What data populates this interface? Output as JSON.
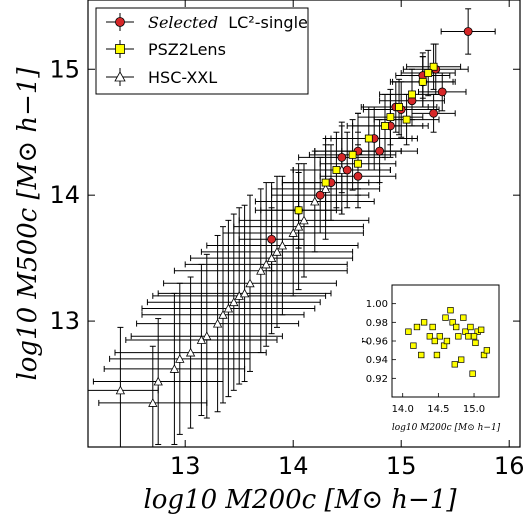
{
  "chart_data": [
    {
      "type": "scatter",
      "xlabel": "log10 M200c [M⊙ h−1]",
      "ylabel": "log10 M500c [M⊙ h−1]",
      "xlim": [
        12.1,
        16.1
      ],
      "ylim": [
        12.0,
        15.55
      ],
      "x_ticks": [
        13,
        14,
        15,
        16
      ],
      "x_tick_labels": [
        "13",
        "14",
        "15",
        "16"
      ],
      "y_ticks": [
        13,
        14,
        15
      ],
      "y_tick_labels": [
        "13",
        "14",
        "15"
      ],
      "grid": false,
      "legend_position": "top-left",
      "series": [
        {
          "name": "Selected LC²-single",
          "marker": "circle",
          "color": "#d62728",
          "points": [
            {
              "x": 15.62,
              "y": 15.3,
              "xerr": 0.25,
              "yerr": 0.18
            },
            {
              "x": 15.32,
              "y": 15.0,
              "xerr": 0.3,
              "yerr": 0.2
            },
            {
              "x": 15.38,
              "y": 14.82,
              "xerr": 0.22,
              "yerr": 0.15
            },
            {
              "x": 15.2,
              "y": 14.9,
              "xerr": 0.28,
              "yerr": 0.2
            },
            {
              "x": 15.1,
              "y": 14.75,
              "xerr": 0.3,
              "yerr": 0.2
            },
            {
              "x": 15.0,
              "y": 14.68,
              "xerr": 0.35,
              "yerr": 0.22
            },
            {
              "x": 15.3,
              "y": 14.65,
              "xerr": 0.2,
              "yerr": 0.15
            },
            {
              "x": 14.9,
              "y": 14.55,
              "xerr": 0.35,
              "yerr": 0.25
            },
            {
              "x": 14.75,
              "y": 14.45,
              "xerr": 0.4,
              "yerr": 0.25
            },
            {
              "x": 14.6,
              "y": 14.35,
              "xerr": 0.4,
              "yerr": 0.3
            },
            {
              "x": 14.5,
              "y": 14.2,
              "xerr": 0.4,
              "yerr": 0.3
            },
            {
              "x": 14.35,
              "y": 14.1,
              "xerr": 0.45,
              "yerr": 0.3
            },
            {
              "x": 14.25,
              "y": 14.0,
              "xerr": 0.45,
              "yerr": 0.3
            },
            {
              "x": 14.05,
              "y": 13.88,
              "xerr": 0.4,
              "yerr": 0.3
            },
            {
              "x": 13.8,
              "y": 13.65,
              "xerr": 0.3,
              "yerr": 0.25
            },
            {
              "x": 14.6,
              "y": 14.15,
              "xerr": 0.35,
              "yerr": 0.25
            },
            {
              "x": 14.95,
              "y": 14.7,
              "xerr": 0.3,
              "yerr": 0.2
            },
            {
              "x": 15.2,
              "y": 14.95,
              "xerr": 0.25,
              "yerr": 0.18
            },
            {
              "x": 14.45,
              "y": 14.3,
              "xerr": 0.4,
              "yerr": 0.28
            },
            {
              "x": 14.8,
              "y": 14.35,
              "xerr": 0.35,
              "yerr": 0.25
            }
          ]
        },
        {
          "name": "PSZ2Lens",
          "marker": "square",
          "color": "#ffff00",
          "points": [
            {
              "x": 15.3,
              "y": 15.02,
              "xerr": 0.25,
              "yerr": 0.18
            },
            {
              "x": 15.2,
              "y": 14.9,
              "xerr": 0.3,
              "yerr": 0.2
            },
            {
              "x": 15.1,
              "y": 14.8,
              "xerr": 0.3,
              "yerr": 0.2
            },
            {
              "x": 14.98,
              "y": 14.7,
              "xerr": 0.35,
              "yerr": 0.22
            },
            {
              "x": 14.85,
              "y": 14.55,
              "xerr": 0.35,
              "yerr": 0.25
            },
            {
              "x": 14.7,
              "y": 14.45,
              "xerr": 0.4,
              "yerr": 0.25
            },
            {
              "x": 14.55,
              "y": 14.32,
              "xerr": 0.4,
              "yerr": 0.28
            },
            {
              "x": 14.4,
              "y": 14.2,
              "xerr": 0.4,
              "yerr": 0.3
            },
            {
              "x": 14.3,
              "y": 14.1,
              "xerr": 0.4,
              "yerr": 0.3
            },
            {
              "x": 14.05,
              "y": 13.88,
              "xerr": 0.35,
              "yerr": 0.3
            },
            {
              "x": 15.05,
              "y": 14.6,
              "xerr": 0.3,
              "yerr": 0.2
            },
            {
              "x": 14.9,
              "y": 14.62,
              "xerr": 0.3,
              "yerr": 0.22
            },
            {
              "x": 15.25,
              "y": 14.97,
              "xerr": 0.25,
              "yerr": 0.18
            },
            {
              "x": 14.6,
              "y": 14.25,
              "xerr": 0.35,
              "yerr": 0.25
            }
          ]
        },
        {
          "name": "HSC-XXL",
          "marker": "triangle",
          "color": "#ffffff",
          "points": [
            {
              "x": 12.4,
              "y": 12.45,
              "xerr": 0.35,
              "yerr": 0.5
            },
            {
              "x": 12.7,
              "y": 12.35,
              "xerr": 0.5,
              "yerr": 0.45
            },
            {
              "x": 12.75,
              "y": 12.52,
              "xerr": 0.6,
              "yerr": 0.5
            },
            {
              "x": 12.9,
              "y": 12.62,
              "xerr": 0.65,
              "yerr": 0.6
            },
            {
              "x": 13.05,
              "y": 12.75,
              "xerr": 0.7,
              "yerr": 0.6
            },
            {
              "x": 13.2,
              "y": 12.88,
              "xerr": 0.7,
              "yerr": 0.65
            },
            {
              "x": 13.3,
              "y": 12.98,
              "xerr": 0.75,
              "yerr": 0.7
            },
            {
              "x": 13.4,
              "y": 13.1,
              "xerr": 0.8,
              "yerr": 0.7
            },
            {
              "x": 13.5,
              "y": 13.2,
              "xerr": 0.8,
              "yerr": 0.7
            },
            {
              "x": 13.6,
              "y": 13.3,
              "xerr": 0.8,
              "yerr": 0.7
            },
            {
              "x": 13.7,
              "y": 13.4,
              "xerr": 0.8,
              "yerr": 0.65
            },
            {
              "x": 13.8,
              "y": 13.5,
              "xerr": 0.75,
              "yerr": 0.6
            },
            {
              "x": 13.9,
              "y": 13.6,
              "xerr": 0.7,
              "yerr": 0.55
            },
            {
              "x": 14.0,
              "y": 13.7,
              "xerr": 0.65,
              "yerr": 0.5
            },
            {
              "x": 14.1,
              "y": 13.8,
              "xerr": 0.6,
              "yerr": 0.45
            },
            {
              "x": 14.2,
              "y": 13.95,
              "xerr": 0.55,
              "yerr": 0.4
            },
            {
              "x": 13.35,
              "y": 13.05,
              "xerr": 0.75,
              "yerr": 0.7
            },
            {
              "x": 13.55,
              "y": 13.22,
              "xerr": 0.8,
              "yerr": 0.7
            },
            {
              "x": 13.75,
              "y": 13.45,
              "xerr": 0.75,
              "yerr": 0.65
            },
            {
              "x": 12.95,
              "y": 12.7,
              "xerr": 0.65,
              "yerr": 0.6
            },
            {
              "x": 13.15,
              "y": 12.85,
              "xerr": 0.7,
              "yerr": 0.6
            },
            {
              "x": 13.45,
              "y": 13.15,
              "xerr": 0.8,
              "yerr": 0.7
            },
            {
              "x": 13.85,
              "y": 13.55,
              "xerr": 0.7,
              "yerr": 0.6
            },
            {
              "x": 14.05,
              "y": 13.75,
              "xerr": 0.6,
              "yerr": 0.5
            },
            {
              "x": 14.3,
              "y": 14.05,
              "xerr": 0.5,
              "yerr": 0.4
            },
            {
              "x": 14.45,
              "y": 14.2,
              "xerr": 0.45,
              "yerr": 0.35
            },
            {
              "x": 14.6,
              "y": 14.35,
              "xerr": 0.4,
              "yerr": 0.3
            }
          ]
        }
      ],
      "legend": [
        {
          "label_italic": "Selected",
          "label_rest": "LC²-single",
          "marker": "circle"
        },
        {
          "label": "PSZ2Lens",
          "marker": "square"
        },
        {
          "label": "HSC-XXL",
          "marker": "triangle"
        }
      ]
    },
    {
      "type": "scatter",
      "xlabel": "log10 M200c [M⊙ h−1]",
      "ylabel": "r",
      "xlim": [
        13.85,
        15.35
      ],
      "ylim": [
        0.9,
        1.02
      ],
      "x_ticks": [
        14.0,
        14.5,
        15.0
      ],
      "x_tick_labels": [
        "14.0",
        "14.5",
        "15.0"
      ],
      "y_ticks": [
        0.92,
        0.94,
        0.96,
        0.98,
        1.0
      ],
      "y_tick_labels": [
        "0.92",
        "0.94",
        "0.96",
        "0.98",
        "1.00"
      ],
      "series": [
        {
          "name": "PSZ2Lens",
          "marker": "square",
          "color": "#ffff00",
          "points": [
            {
              "x": 14.08,
              "y": 0.97
            },
            {
              "x": 14.15,
              "y": 0.955
            },
            {
              "x": 14.2,
              "y": 0.975
            },
            {
              "x": 14.26,
              "y": 0.945
            },
            {
              "x": 14.3,
              "y": 0.98
            },
            {
              "x": 14.38,
              "y": 0.965
            },
            {
              "x": 14.42,
              "y": 0.975
            },
            {
              "x": 14.48,
              "y": 0.945
            },
            {
              "x": 14.52,
              "y": 0.965
            },
            {
              "x": 14.58,
              "y": 0.955
            },
            {
              "x": 14.62,
              "y": 0.96
            },
            {
              "x": 14.67,
              "y": 0.993
            },
            {
              "x": 14.7,
              "y": 0.98
            },
            {
              "x": 14.73,
              "y": 0.935
            },
            {
              "x": 14.75,
              "y": 0.975
            },
            {
              "x": 14.78,
              "y": 0.965
            },
            {
              "x": 14.82,
              "y": 0.94
            },
            {
              "x": 14.85,
              "y": 0.985
            },
            {
              "x": 14.88,
              "y": 0.97
            },
            {
              "x": 14.92,
              "y": 0.965
            },
            {
              "x": 14.95,
              "y": 0.975
            },
            {
              "x": 14.98,
              "y": 0.925
            },
            {
              "x": 15.02,
              "y": 0.958
            },
            {
              "x": 15.05,
              "y": 0.97
            },
            {
              "x": 15.1,
              "y": 0.972
            },
            {
              "x": 15.14,
              "y": 0.945
            },
            {
              "x": 15.18,
              "y": 0.95
            },
            {
              "x": 14.45,
              "y": 0.96
            },
            {
              "x": 14.6,
              "y": 0.985
            },
            {
              "x": 15.0,
              "y": 0.965
            }
          ]
        }
      ]
    }
  ]
}
